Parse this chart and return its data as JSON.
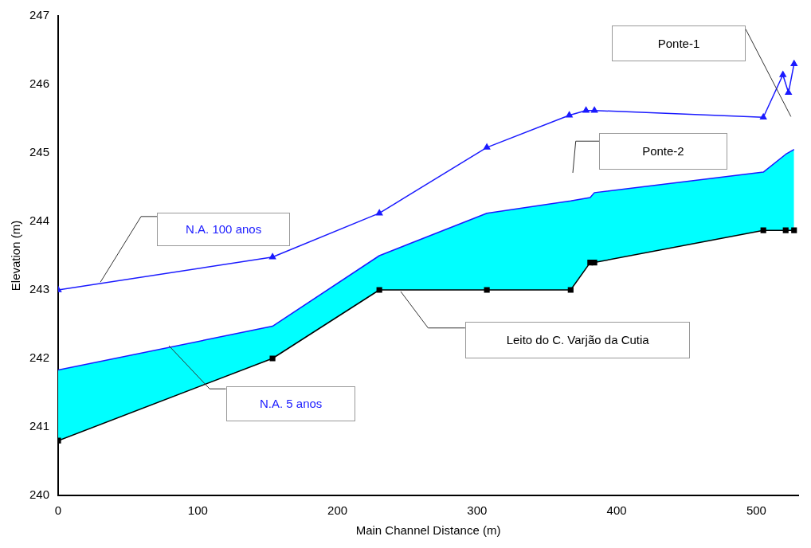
{
  "chart_data": {
    "type": "line",
    "xlabel": "Main Channel Distance (m)",
    "ylabel": "Elevation (m)",
    "xlim": [
      0,
      530
    ],
    "xticks": [
      0,
      100,
      200,
      300,
      400,
      500
    ],
    "ylim": [
      240,
      247
    ],
    "yticks": [
      240,
      241,
      242,
      243,
      244,
      245,
      246,
      247
    ],
    "grid": false,
    "legend": false,
    "series": [
      {
        "name": "N.A. 100 anos",
        "type": "line",
        "color": "#1a1aff",
        "marker": "triangle",
        "x": [
          0,
          153.5,
          230,
          307,
          366,
          378,
          384,
          505,
          519,
          523,
          527
        ],
        "values": [
          243.0,
          243.48,
          244.12,
          245.08,
          245.55,
          245.62,
          245.62,
          245.52,
          246.14,
          245.88,
          246.3
        ]
      },
      {
        "name": "N.A. 5 anos",
        "type": "area",
        "color": "#1a1aff",
        "marker": "none",
        "x": [
          0,
          153.5,
          230,
          307,
          367,
          381,
          384,
          505,
          521,
          527
        ],
        "values": [
          241.83,
          242.47,
          243.5,
          244.12,
          244.3,
          244.35,
          244.42,
          244.72,
          244.98,
          245.05
        ]
      },
      {
        "name": "Leito do C. Varjão da Cutia",
        "type": "line",
        "color": "#000000",
        "marker": "square",
        "x": [
          0,
          153.5,
          230,
          307,
          367,
          381,
          384,
          505,
          521,
          527
        ],
        "values": [
          240.8,
          242.0,
          243.0,
          243.0,
          243.0,
          243.4,
          243.4,
          243.87,
          243.87,
          243.87
        ]
      }
    ],
    "annotations": [
      "Ponte-1",
      "Ponte-2"
    ]
  }
}
